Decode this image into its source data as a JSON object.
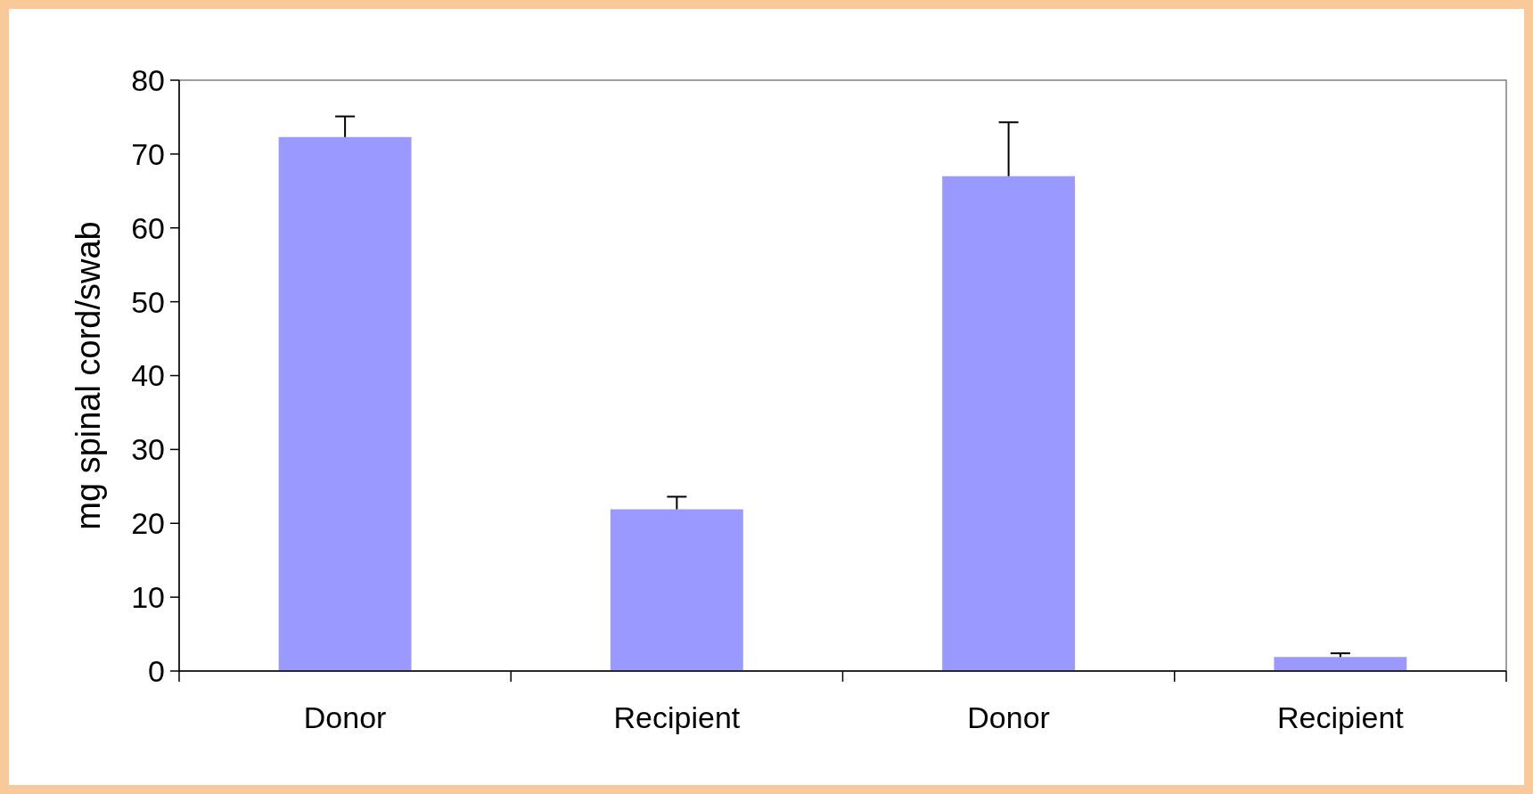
{
  "chart_data": {
    "type": "bar",
    "ylabel": "mg spinal cord/swab",
    "categories": [
      "Donor",
      "Recipient",
      "Donor",
      "Recipient"
    ],
    "values": [
      72.3,
      21.9,
      67.0,
      1.9
    ],
    "color": "#9999ff",
    "errors": [
      [
        72.3,
        75.1
      ],
      [
        21.9,
        23.6
      ],
      [
        67.0,
        74.3
      ],
      [
        1.9,
        2.4
      ]
    ],
    "ylim": [
      0,
      80
    ],
    "yticks": [
      0,
      10,
      20,
      30,
      40,
      50,
      60,
      70,
      80
    ],
    "grid": false
  }
}
